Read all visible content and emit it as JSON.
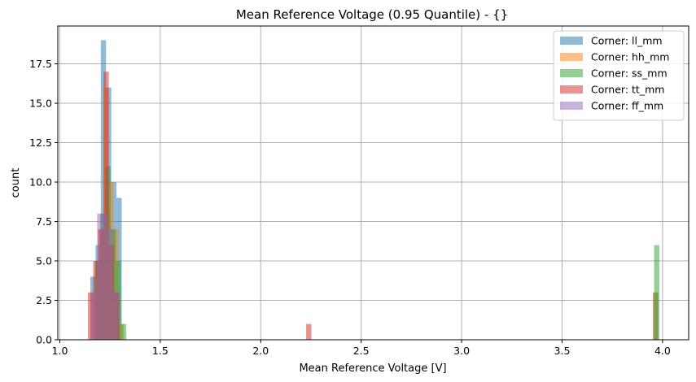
{
  "chart_data": {
    "type": "bar",
    "subtype": "overlapping-histogram",
    "title": "Mean Reference Voltage (0.95 Quantile) - {}",
    "xlabel": "Mean Reference Voltage [V]",
    "ylabel": "count",
    "xlim": [
      0.99,
      4.13
    ],
    "ylim": [
      0,
      19.9
    ],
    "xticks": [
      1.0,
      1.5,
      2.0,
      2.5,
      3.0,
      3.5,
      4.0
    ],
    "xtick_labels": [
      "1.0",
      "1.5",
      "2.0",
      "2.5",
      "3.0",
      "3.5",
      "4.0"
    ],
    "yticks": [
      0,
      2.5,
      5,
      7.5,
      10,
      12.5,
      15,
      17.5
    ],
    "ytick_labels": [
      "0.0",
      "2.5",
      "5.0",
      "7.5",
      "10.0",
      "12.5",
      "15.0",
      "17.5"
    ],
    "grid": true,
    "legend_position": "top-right",
    "bar_opacity": 0.5,
    "series": [
      {
        "name": "Corner: ll_mm",
        "color": "#1f77b4",
        "bins": [
          [
            1.152,
            1.178,
            4
          ],
          [
            1.178,
            1.204,
            6
          ],
          [
            1.204,
            1.23,
            19
          ],
          [
            1.23,
            1.256,
            16
          ],
          [
            1.256,
            1.282,
            10
          ],
          [
            1.282,
            1.308,
            9
          ],
          [
            3.952,
            3.978,
            3
          ]
        ]
      },
      {
        "name": "Corner: hh_mm",
        "color": "#ff7f0e",
        "bins": [
          [
            1.163,
            1.189,
            3
          ],
          [
            1.189,
            1.215,
            7
          ],
          [
            1.215,
            1.241,
            16
          ],
          [
            1.241,
            1.267,
            10
          ],
          [
            1.267,
            1.293,
            7
          ],
          [
            1.293,
            1.319,
            1
          ],
          [
            3.952,
            3.978,
            3
          ]
        ]
      },
      {
        "name": "Corner: ss_mm",
        "color": "#2ca02c",
        "bins": [
          [
            1.175,
            1.201,
            5
          ],
          [
            1.201,
            1.227,
            8
          ],
          [
            1.227,
            1.253,
            11
          ],
          [
            1.253,
            1.279,
            7
          ],
          [
            1.279,
            1.305,
            5
          ],
          [
            1.305,
            1.331,
            1
          ],
          [
            3.958,
            3.984,
            6
          ]
        ]
      },
      {
        "name": "Corner: tt_mm",
        "color": "#d62728",
        "bins": [
          [
            1.14,
            1.166,
            3
          ],
          [
            1.166,
            1.192,
            5
          ],
          [
            1.192,
            1.218,
            7
          ],
          [
            1.218,
            1.244,
            17
          ],
          [
            1.244,
            1.27,
            6
          ],
          [
            1.27,
            1.296,
            3
          ],
          [
            2.226,
            2.252,
            1
          ]
        ]
      },
      {
        "name": "Corner: ff_mm",
        "color": "#9467bd",
        "bins": [
          [
            1.16,
            1.186,
            3
          ],
          [
            1.186,
            1.212,
            8
          ],
          [
            1.212,
            1.238,
            8
          ],
          [
            1.238,
            1.264,
            7
          ],
          [
            1.264,
            1.29,
            3
          ]
        ]
      }
    ]
  }
}
